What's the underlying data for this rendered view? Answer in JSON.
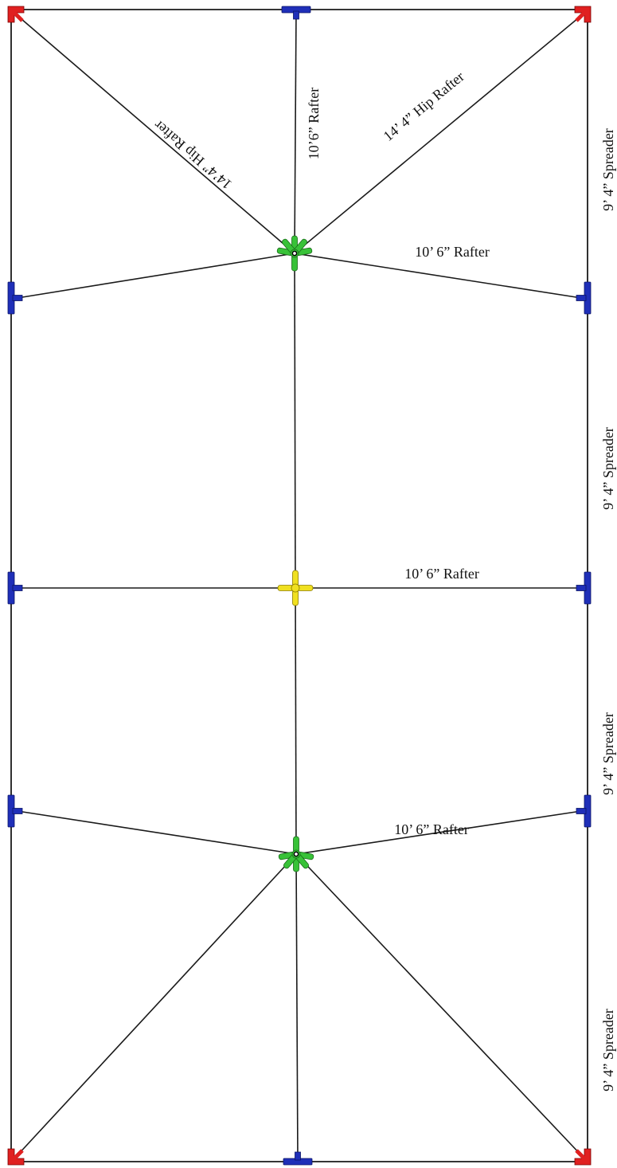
{
  "colors": {
    "corner_fitting": "#e02020",
    "tee_fitting": "#1f2fb8",
    "hub_six_way": "#38c238",
    "hub_four_way": "#f0e020",
    "members": "#1a1a1a"
  },
  "icons": {
    "corner": "red-corner-fitting-icon",
    "tee": "blue-tee-fitting-icon",
    "hub6": "green-six-way-hub-icon",
    "hub4": "yellow-cross-fitting-icon"
  },
  "labels": {
    "hip_left": "14’4” Hip Rafter",
    "rafter_vertical": "10’6” Rafter",
    "hip_right": "14’ 4” Hip Rafter",
    "rafter_top": "10’ 6” Rafter",
    "rafter_middle": "10’ 6” Rafter",
    "rafter_bottom": "10’ 6” Rafter",
    "spreader_1": "9’ 4” Spreader",
    "spreader_2": "9’ 4” Spreader",
    "spreader_3": "9’ 4” Spreader",
    "spreader_4": "9’ 4” Spreader"
  }
}
